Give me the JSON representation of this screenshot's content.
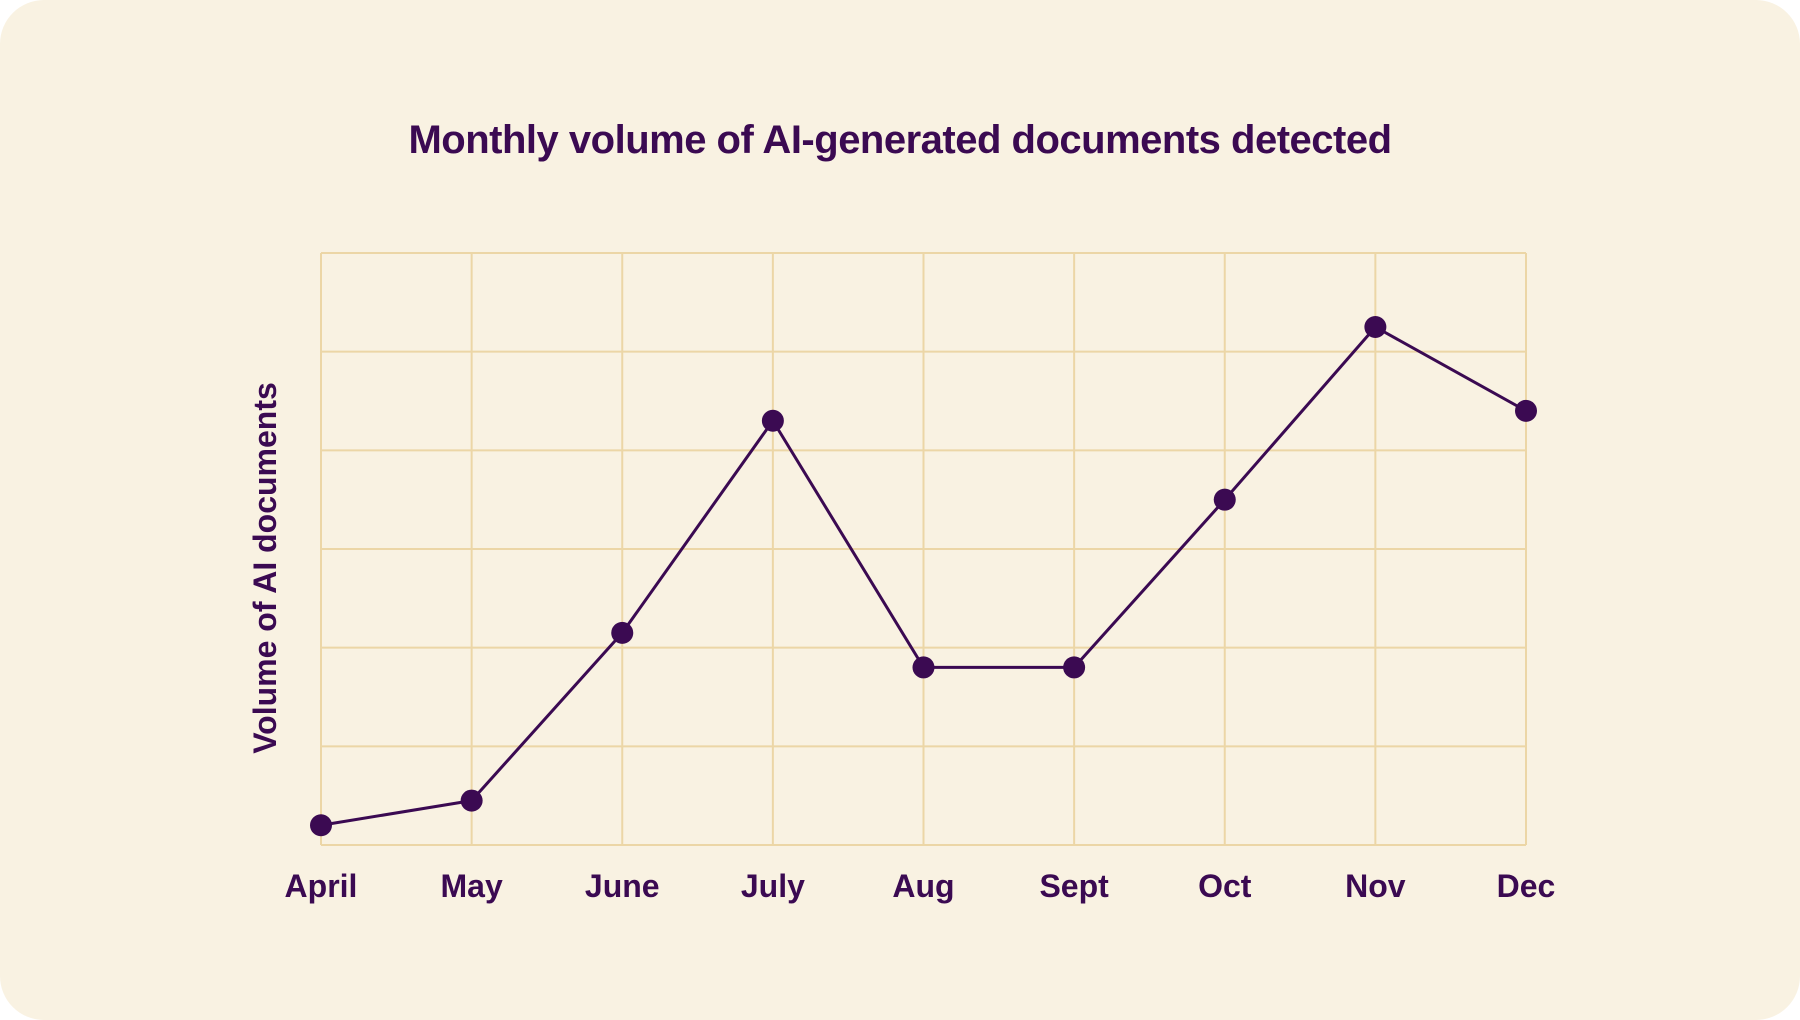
{
  "chart_data": {
    "type": "line",
    "title": "Monthly volume of AI-generated documents detected",
    "xlabel": "",
    "ylabel": "Volume of AI documents",
    "categories": [
      "April",
      "May",
      "June",
      "July",
      "Aug",
      "Sept",
      "Oct",
      "Nov",
      "Dec"
    ],
    "series": [
      {
        "values": [
          0.2,
          0.45,
          2.15,
          4.3,
          1.8,
          1.8,
          3.5,
          5.25,
          4.4
        ]
      }
    ],
    "ylim": [
      0,
      6
    ],
    "y_tick_labels_shown": false,
    "grid": true,
    "legend": "none",
    "colors": {
      "background": "#f9f2e2",
      "grid": "#ecd6a6",
      "line": "#3b0a52",
      "marker": "#3b0a52",
      "text": "#3b0a52"
    }
  }
}
